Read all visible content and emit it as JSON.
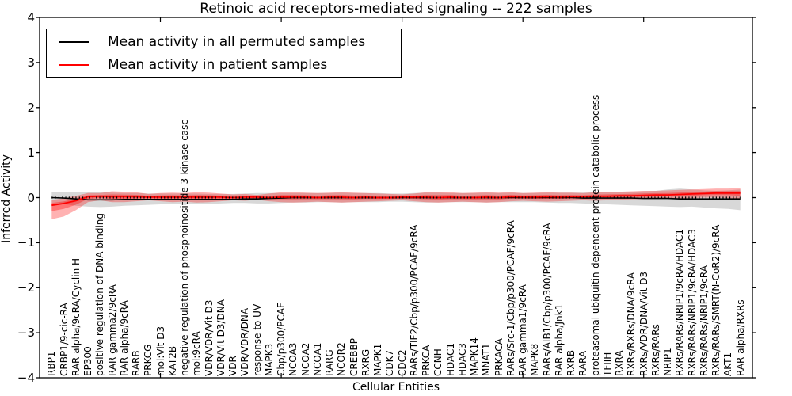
{
  "legend": {
    "entries": [
      {
        "label": "Mean activity in all permuted samples",
        "color": "#000000"
      },
      {
        "label": "Mean activity in patient samples",
        "color": "#ff0000"
      }
    ]
  },
  "chart_data": {
    "type": "line",
    "title": "Retinoic acid receptors-mediated signaling -- 222 samples",
    "xlabel": "Cellular Entities",
    "ylabel": "Inferred Activity",
    "ylim": [
      -4,
      4
    ],
    "yticks": [
      "4",
      "3",
      "2",
      "1",
      "0",
      "−1",
      "−2",
      "−3",
      "−4"
    ],
    "grid": false,
    "legend_position": "upper left",
    "zero_reference_line": "dotted black at y=0",
    "categories": [
      "RBP1",
      "CRBP1/9-cic-RA",
      "RAR alpha/9cRA/Cyclin H",
      "EP300",
      "positive regulation of DNA binding",
      "RAR gamma2/9cRA",
      "RAR alpha/9cRA",
      "RARB",
      "PRKCG",
      "mol:Vit D3",
      "KAT2B",
      "negative regulation of phosphoinositide 3-kinase casc",
      "mol:9cRA",
      "VDR/VDR/Vit D3",
      "VDR/Vit D3/DNA",
      "VDR",
      "VDR/VDR/DNA",
      "response to UV",
      "MAPK3",
      "Cbp/p300/PCAF",
      "NCOA3",
      "NCOA2",
      "NCOA1",
      "RARG",
      "NCOR2",
      "CREBBP",
      "RXRG",
      "MAPK1",
      "CDK7",
      "CDC2",
      "RARs/TIF2/Cbp/p300/PCAF/9cRA",
      "PRKCA",
      "CCNH",
      "HDAC1",
      "HDAC3",
      "MAPK14",
      "MNAT1",
      "PRKACA",
      "RARs/Src-1/Cbp/p300/PCAF/9cRA",
      "RAR gamma1/9cRA",
      "MAPK8",
      "RARs/AIB1/Cbp/p300/PCAF/9cRA",
      "RAR alpha/Jnk1",
      "RXRB",
      "RARA",
      "proteasomal ubiquitin-dependent protein catabolic process",
      "TFIIH",
      "RXRA",
      "RXRs/RXRs/DNA/9cRA",
      "RXRs/VDR/DNA/Vit D3",
      "RXRs/RARs",
      "NRIP1",
      "RXRs/RARs/NRIP1/9cRA/HDAC1",
      "RXRs/RARs/NRIP1/9cRA/HDAC3",
      "RXRs/RARs/NRIP1/9cRA",
      "RXRs/RARs/SMRT(N-CoR2)/9cRA",
      "AKT1",
      "RAR alpha/RXRs"
    ],
    "series": [
      {
        "name": "Mean activity in all permuted samples",
        "color": "#000000",
        "band_color": "#999999",
        "values": [
          0.0,
          -0.01,
          -0.03,
          -0.05,
          -0.05,
          -0.05,
          -0.04,
          -0.04,
          -0.04,
          -0.04,
          -0.04,
          -0.04,
          -0.04,
          -0.04,
          -0.04,
          -0.04,
          -0.03,
          -0.03,
          -0.02,
          -0.01,
          0.0,
          0.0,
          0.0,
          0.0,
          0.0,
          0.0,
          0.0,
          0.0,
          0.0,
          0.0,
          0.0,
          0.0,
          0.0,
          0.0,
          0.0,
          0.0,
          0.0,
          0.0,
          0.0,
          0.0,
          0.0,
          0.0,
          0.0,
          0.0,
          -0.01,
          -0.01,
          -0.01,
          -0.01,
          -0.01,
          -0.02,
          -0.02,
          -0.02,
          -0.03,
          -0.03,
          -0.03,
          -0.03,
          -0.03,
          -0.03
        ],
        "band_low": [
          -0.12,
          -0.14,
          -0.18,
          -0.2,
          -0.21,
          -0.2,
          -0.18,
          -0.17,
          -0.16,
          -0.15,
          -0.15,
          -0.14,
          -0.14,
          -0.14,
          -0.13,
          -0.12,
          -0.12,
          -0.13,
          -0.13,
          -0.12,
          -0.11,
          -0.11,
          -0.1,
          -0.1,
          -0.11,
          -0.1,
          -0.1,
          -0.1,
          -0.09,
          -0.09,
          -0.1,
          -0.11,
          -0.11,
          -0.1,
          -0.1,
          -0.1,
          -0.11,
          -0.1,
          -0.1,
          -0.1,
          -0.1,
          -0.11,
          -0.12,
          -0.12,
          -0.13,
          -0.14,
          -0.15,
          -0.16,
          -0.17,
          -0.18,
          -0.19,
          -0.2,
          -0.21,
          -0.2,
          -0.22,
          -0.24,
          -0.25,
          -0.28
        ],
        "band_high": [
          0.12,
          0.13,
          0.12,
          0.12,
          0.12,
          0.11,
          0.1,
          0.1,
          0.09,
          0.09,
          0.09,
          0.09,
          0.09,
          0.08,
          0.08,
          0.08,
          0.09,
          0.1,
          0.1,
          0.1,
          0.1,
          0.1,
          0.1,
          0.1,
          0.11,
          0.1,
          0.1,
          0.1,
          0.09,
          0.09,
          0.1,
          0.11,
          0.11,
          0.1,
          0.1,
          0.1,
          0.11,
          0.1,
          0.11,
          0.1,
          0.1,
          0.11,
          0.11,
          0.11,
          0.11,
          0.12,
          0.12,
          0.13,
          0.13,
          0.14,
          0.15,
          0.18,
          0.2,
          0.18,
          0.16,
          0.15,
          0.16,
          0.18
        ]
      },
      {
        "name": "Mean activity in patient samples",
        "color": "#ff0000",
        "band_color": "#ff0000",
        "values": [
          -0.17,
          -0.13,
          -0.07,
          0.02,
          0.03,
          0.02,
          0.02,
          0.02,
          0.01,
          0.01,
          0.01,
          0.01,
          0.01,
          0.01,
          0.01,
          0.0,
          0.01,
          0.01,
          0.0,
          0.01,
          0.01,
          0.01,
          0.0,
          0.01,
          0.01,
          0.0,
          0.01,
          0.0,
          0.0,
          0.01,
          0.01,
          0.01,
          0.0,
          0.01,
          0.0,
          0.0,
          0.01,
          0.0,
          0.02,
          0.01,
          0.01,
          0.02,
          0.01,
          0.02,
          0.02,
          0.03,
          0.03,
          0.04,
          0.04,
          0.05,
          0.06,
          0.06,
          0.07,
          0.08,
          0.09,
          0.1,
          0.1,
          0.1
        ],
        "band_low": [
          -0.48,
          -0.42,
          -0.28,
          -0.1,
          -0.06,
          -0.1,
          -0.1,
          -0.08,
          -0.06,
          -0.08,
          -0.1,
          -0.09,
          -0.11,
          -0.1,
          -0.08,
          -0.06,
          -0.07,
          -0.05,
          -0.08,
          -0.1,
          -0.11,
          -0.1,
          -0.09,
          -0.1,
          -0.11,
          -0.1,
          -0.09,
          -0.08,
          -0.07,
          -0.06,
          -0.08,
          -0.1,
          -0.11,
          -0.1,
          -0.09,
          -0.1,
          -0.11,
          -0.1,
          -0.08,
          -0.07,
          -0.08,
          -0.09,
          -0.08,
          -0.07,
          -0.06,
          -0.07,
          -0.06,
          -0.05,
          -0.04,
          -0.03,
          -0.03,
          -0.02,
          -0.02,
          -0.01,
          0.0,
          0.0,
          -0.01,
          -0.04
        ],
        "band_high": [
          -0.05,
          -0.02,
          0.04,
          0.1,
          0.1,
          0.14,
          0.13,
          0.12,
          0.08,
          0.1,
          0.11,
          0.1,
          0.12,
          0.11,
          0.09,
          0.07,
          0.08,
          0.06,
          0.09,
          0.12,
          0.12,
          0.11,
          0.1,
          0.11,
          0.12,
          0.11,
          0.1,
          0.09,
          0.08,
          0.07,
          0.09,
          0.12,
          0.13,
          0.12,
          0.1,
          0.11,
          0.12,
          0.11,
          0.12,
          0.1,
          0.11,
          0.12,
          0.11,
          0.11,
          0.1,
          0.12,
          0.13,
          0.13,
          0.14,
          0.15,
          0.15,
          0.16,
          0.17,
          0.18,
          0.19,
          0.2,
          0.2,
          0.21
        ]
      }
    ]
  }
}
